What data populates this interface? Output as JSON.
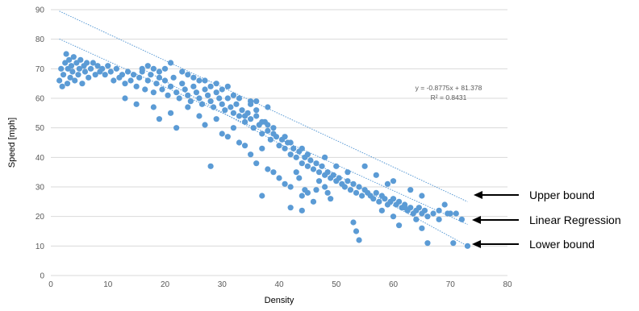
{
  "chart_data": {
    "type": "scatter",
    "title": "",
    "xlabel": "Density",
    "ylabel": "Speed [mph]",
    "xlim": [
      0,
      80
    ],
    "ylim": [
      0,
      90
    ],
    "x_ticks": [
      "0",
      "10",
      "20",
      "30",
      "40",
      "50",
      "60",
      "70",
      "80"
    ],
    "y_ticks": [
      "0",
      "10",
      "20",
      "30",
      "40",
      "50",
      "60",
      "70",
      "80",
      "90"
    ],
    "grid": "horizontal",
    "legend": "none",
    "colors": {
      "points": "#5b9bd5",
      "lines": "#5b9bd5",
      "arrows": "#000000"
    },
    "series": [
      {
        "values": [
          [
            1.5,
            66
          ],
          [
            1.8,
            70
          ],
          [
            2,
            64
          ],
          [
            2.2,
            68
          ],
          [
            2.5,
            72
          ],
          [
            2.7,
            75
          ],
          [
            2.9,
            65
          ],
          [
            3,
            70
          ],
          [
            3.2,
            73
          ],
          [
            3.4,
            67
          ],
          [
            3.6,
            71
          ],
          [
            3.8,
            69
          ],
          [
            4,
            74
          ],
          [
            4.2,
            66
          ],
          [
            4.5,
            72
          ],
          [
            4.8,
            68
          ],
          [
            5,
            70
          ],
          [
            5.2,
            73
          ],
          [
            5.5,
            65
          ],
          [
            5.8,
            71
          ],
          [
            6,
            69
          ],
          [
            6.3,
            72
          ],
          [
            6.6,
            67
          ],
          [
            7,
            70
          ],
          [
            7.4,
            72
          ],
          [
            7.8,
            68
          ],
          [
            8.2,
            71
          ],
          [
            8.6,
            69
          ],
          [
            9,
            70
          ],
          [
            9.5,
            68
          ],
          [
            10,
            71
          ],
          [
            10.5,
            69
          ],
          [
            11,
            66
          ],
          [
            11.5,
            70
          ],
          [
            12,
            67
          ],
          [
            12.5,
            68
          ],
          [
            13,
            65
          ],
          [
            13.5,
            69
          ],
          [
            14,
            66
          ],
          [
            14.5,
            68
          ],
          [
            15,
            64
          ],
          [
            15.5,
            67
          ],
          [
            16,
            69
          ],
          [
            16.5,
            63
          ],
          [
            17,
            66
          ],
          [
            17.5,
            68
          ],
          [
            18,
            62
          ],
          [
            18.5,
            65
          ],
          [
            19,
            67
          ],
          [
            19.5,
            63
          ],
          [
            20,
            66
          ],
          [
            20.5,
            61
          ],
          [
            21,
            64
          ],
          [
            21.5,
            67
          ],
          [
            22,
            62
          ],
          [
            22.5,
            60
          ],
          [
            23,
            65
          ],
          [
            23.5,
            63
          ],
          [
            24,
            61
          ],
          [
            24.5,
            59
          ],
          [
            25,
            64
          ],
          [
            25.5,
            62
          ],
          [
            26,
            60
          ],
          [
            26.5,
            58
          ],
          [
            27,
            63
          ],
          [
            27.5,
            61
          ],
          [
            28,
            59
          ],
          [
            28.5,
            57
          ],
          [
            29,
            62
          ],
          [
            29.5,
            60
          ],
          [
            30,
            58
          ],
          [
            30.5,
            56
          ],
          [
            31,
            60
          ],
          [
            31.5,
            57
          ],
          [
            32,
            55
          ],
          [
            32.5,
            58
          ],
          [
            33,
            54
          ],
          [
            33.5,
            56
          ],
          [
            34,
            52
          ],
          [
            34.5,
            55
          ],
          [
            35,
            53
          ],
          [
            35.5,
            50
          ],
          [
            36,
            54
          ],
          [
            36.5,
            51
          ],
          [
            37,
            48
          ],
          [
            37.5,
            52
          ],
          [
            38,
            49
          ],
          [
            38.5,
            46
          ],
          [
            39,
            50
          ],
          [
            39.5,
            47
          ],
          [
            40,
            44
          ],
          [
            40.5,
            46
          ],
          [
            41,
            43
          ],
          [
            41.5,
            45
          ],
          [
            42,
            41
          ],
          [
            42.5,
            43
          ],
          [
            43,
            40
          ],
          [
            43.5,
            42
          ],
          [
            44,
            38
          ],
          [
            44.5,
            40
          ],
          [
            45,
            37
          ],
          [
            45.5,
            39
          ],
          [
            46,
            36
          ],
          [
            46.5,
            38
          ],
          [
            47,
            35
          ],
          [
            47.5,
            37
          ],
          [
            48,
            34
          ],
          [
            48.5,
            35
          ],
          [
            49,
            33
          ],
          [
            49.5,
            34
          ],
          [
            50,
            32
          ],
          [
            50.5,
            33
          ],
          [
            51,
            31
          ],
          [
            51.5,
            30
          ],
          [
            52,
            32
          ],
          [
            52.5,
            29
          ],
          [
            53,
            31
          ],
          [
            53.5,
            28
          ],
          [
            54,
            30
          ],
          [
            54.5,
            27
          ],
          [
            55,
            29
          ],
          [
            55.5,
            28
          ],
          [
            56,
            27
          ],
          [
            56.5,
            26
          ],
          [
            57,
            28
          ],
          [
            57.5,
            25
          ],
          [
            58,
            27
          ],
          [
            58.5,
            26
          ],
          [
            59,
            24
          ],
          [
            59.5,
            25
          ],
          [
            60,
            26
          ],
          [
            60.5,
            24
          ],
          [
            61,
            25
          ],
          [
            61.5,
            23
          ],
          [
            62,
            24
          ],
          [
            62.5,
            22
          ],
          [
            63,
            23
          ],
          [
            63.5,
            21
          ],
          [
            64,
            22
          ],
          [
            64.5,
            23
          ],
          [
            65,
            21
          ],
          [
            65.5,
            22
          ],
          [
            66,
            20
          ],
          [
            67,
            21
          ],
          [
            68,
            19
          ],
          [
            69,
            24
          ],
          [
            69.5,
            21
          ],
          [
            70,
            21
          ],
          [
            71,
            21
          ],
          [
            72,
            19
          ],
          [
            13,
            60
          ],
          [
            15,
            58
          ],
          [
            18,
            57
          ],
          [
            19,
            53
          ],
          [
            21,
            55
          ],
          [
            22,
            50
          ],
          [
            24,
            57
          ],
          [
            26,
            54
          ],
          [
            27,
            51
          ],
          [
            29,
            53
          ],
          [
            30,
            48
          ],
          [
            31,
            47
          ],
          [
            32,
            50
          ],
          [
            33,
            45
          ],
          [
            34,
            44
          ],
          [
            35,
            41
          ],
          [
            36,
            38
          ],
          [
            37,
            43
          ],
          [
            38,
            36
          ],
          [
            28,
            37
          ],
          [
            39,
            35
          ],
          [
            40,
            33
          ],
          [
            41,
            31
          ],
          [
            42,
            30
          ],
          [
            43,
            35
          ],
          [
            43.5,
            33
          ],
          [
            44,
            27
          ],
          [
            44.5,
            29
          ],
          [
            45,
            28
          ],
          [
            37,
            27
          ],
          [
            46,
            25
          ],
          [
            46.5,
            29
          ],
          [
            47,
            32
          ],
          [
            48,
            30
          ],
          [
            48.5,
            28
          ],
          [
            49,
            26
          ],
          [
            42,
            23
          ],
          [
            44,
            22
          ],
          [
            53,
            18
          ],
          [
            53.5,
            15
          ],
          [
            54,
            12
          ],
          [
            58,
            22
          ],
          [
            60,
            20
          ],
          [
            61,
            17
          ],
          [
            62,
            23
          ],
          [
            64,
            19
          ],
          [
            65,
            16
          ],
          [
            66,
            11
          ],
          [
            70.5,
            11
          ],
          [
            73,
            10
          ],
          [
            60,
            32
          ],
          [
            55,
            37
          ],
          [
            50,
            37
          ],
          [
            48,
            40
          ],
          [
            52,
            35
          ],
          [
            57,
            34
          ],
          [
            59,
            31
          ],
          [
            63,
            29
          ],
          [
            65,
            27
          ],
          [
            68,
            22
          ],
          [
            34,
            54
          ],
          [
            35,
            58
          ],
          [
            36,
            56
          ],
          [
            37,
            52
          ],
          [
            38,
            51
          ],
          [
            39,
            48
          ],
          [
            41,
            47
          ],
          [
            42,
            45
          ],
          [
            44,
            43
          ],
          [
            45,
            41
          ],
          [
            25,
            67
          ],
          [
            27,
            66
          ],
          [
            28,
            64
          ],
          [
            30,
            63
          ],
          [
            32,
            61
          ],
          [
            33,
            60
          ],
          [
            35,
            59
          ],
          [
            36,
            59
          ],
          [
            38,
            57
          ],
          [
            20,
            70
          ],
          [
            21,
            72
          ],
          [
            23,
            69
          ],
          [
            24,
            68
          ],
          [
            26,
            66
          ],
          [
            29,
            65
          ],
          [
            31,
            64
          ],
          [
            16,
            70
          ],
          [
            17,
            71
          ],
          [
            18,
            70
          ],
          [
            19,
            69
          ]
        ]
      }
    ],
    "trendlines": [
      {
        "label": "Upper bound",
        "from": [
          1.5,
          89.5
        ],
        "to": [
          73,
          25
        ]
      },
      {
        "label": "Linear Regression",
        "from": [
          1.5,
          80.06
        ],
        "to": [
          73,
          17.32
        ],
        "equation": "y = -0.8775x + 81.378",
        "r2": "R² = 0.8431"
      },
      {
        "label": "Lower bound",
        "from": [
          16,
          70
        ],
        "to": [
          73,
          10
        ]
      }
    ]
  }
}
